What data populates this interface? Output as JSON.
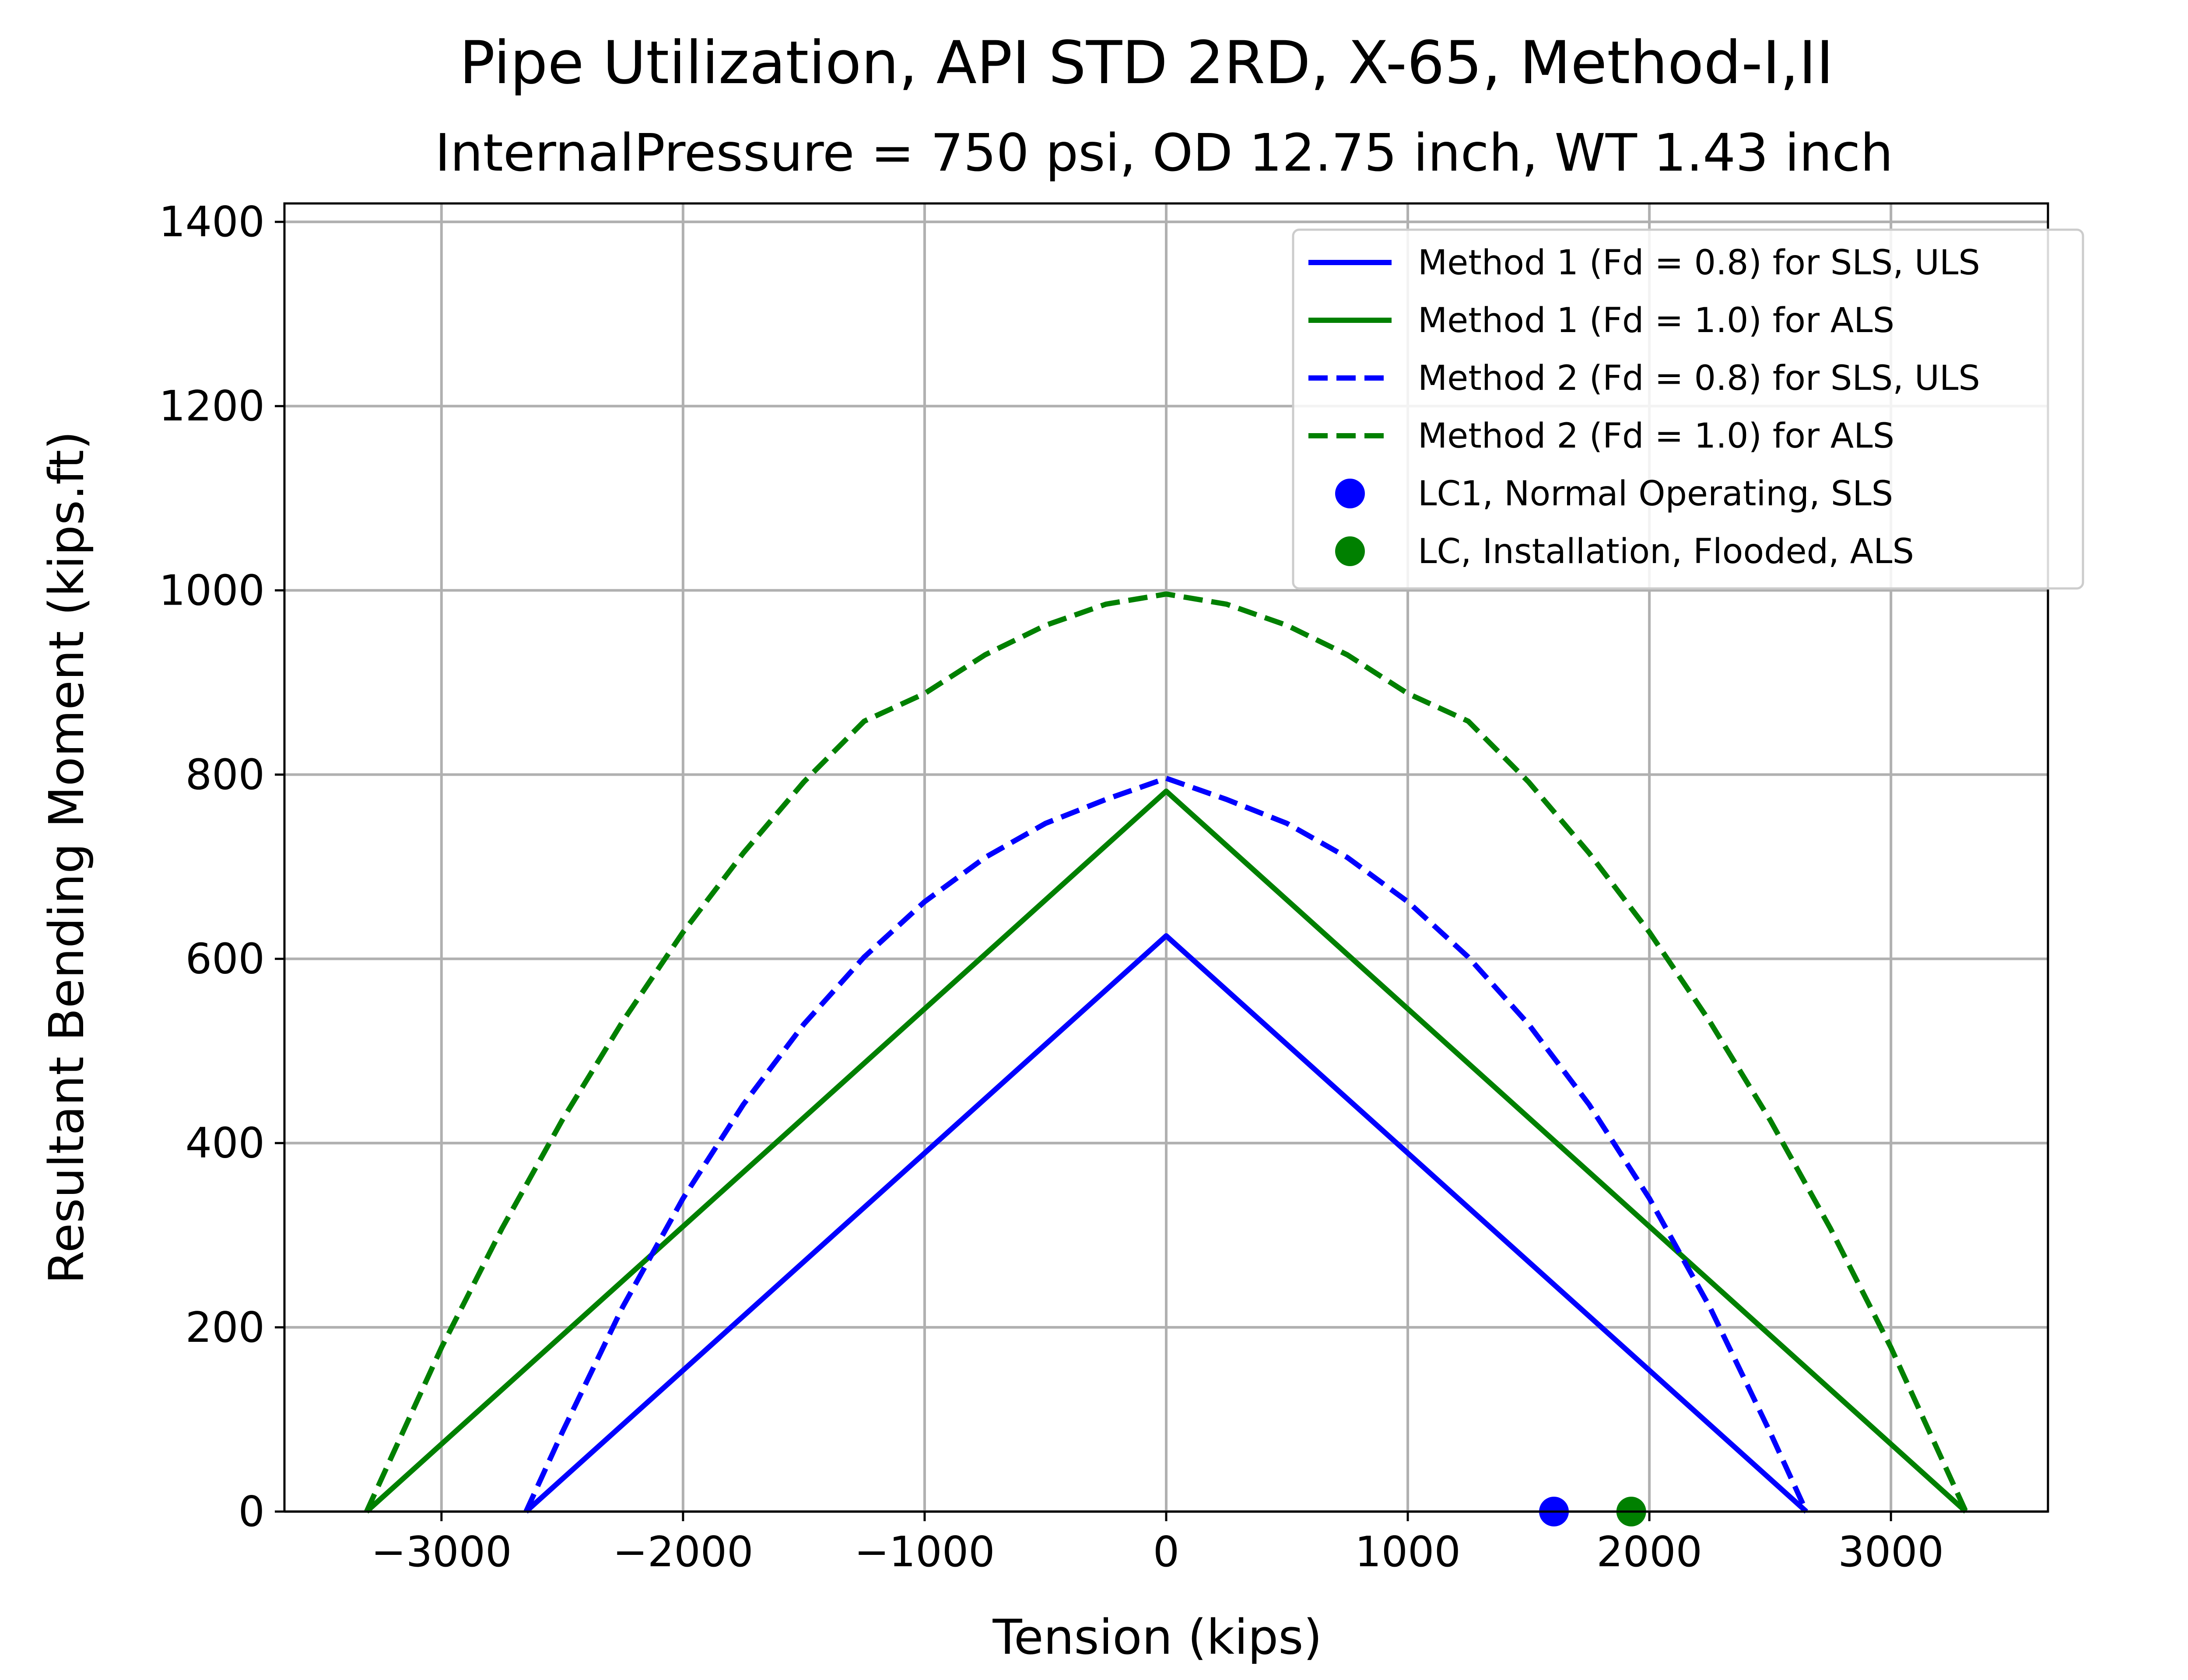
{
  "chart_data": {
    "type": "line",
    "title": "Pipe Utilization, API STD 2RD, X-65, Method-I,II",
    "subtitle": "InternalPressure = 750 psi, OD 12.75 inch, WT 1.43 inch",
    "xlabel": "Tension (kips)",
    "ylabel": "Resultant Bending Moment (kips.ft)",
    "xlim": [
      -3650,
      3650
    ],
    "ylim": [
      0,
      1420
    ],
    "xticks": [
      -3000,
      -2000,
      -1000,
      0,
      1000,
      2000,
      3000
    ],
    "xtick_labels": [
      "−3000",
      "−2000",
      "−1000",
      "0",
      "1000",
      "2000",
      "3000"
    ],
    "yticks": [
      0,
      200,
      400,
      600,
      800,
      1000,
      1200,
      1400
    ],
    "ytick_labels": [
      "0",
      "200",
      "400",
      "600",
      "800",
      "1000",
      "1200",
      "1400"
    ],
    "grid": true,
    "legend_position": "top-right",
    "series": [
      {
        "name": "Method 1 (Fd = 0.8) for SLS, ULS",
        "kind": "line",
        "style": "solid",
        "color": "#0000ff",
        "x": [
          -2650,
          0,
          2650
        ],
        "y": [
          0,
          625,
          0
        ]
      },
      {
        "name": "Method 1 (Fd = 1.0) for ALS",
        "kind": "line",
        "style": "solid",
        "color": "#008000",
        "x": [
          -3310,
          0,
          3310
        ],
        "y": [
          0,
          782,
          0
        ]
      },
      {
        "name": "Method 2 (Fd = 0.8) for SLS, ULS",
        "kind": "line",
        "style": "dashed",
        "color": "#0000ff",
        "x": [
          -2650,
          -2500,
          -2250,
          -2000,
          -1750,
          -1500,
          -1250,
          -1000,
          -750,
          -500,
          -250,
          0,
          250,
          500,
          750,
          1000,
          1250,
          1500,
          1750,
          2000,
          2250,
          2500,
          2650
        ],
        "y": [
          0,
          86,
          222,
          340,
          442,
          529,
          602,
          662,
          710,
          747,
          773,
          796,
          773,
          747,
          710,
          662,
          602,
          529,
          442,
          340,
          222,
          86,
          0
        ]
      },
      {
        "name": "Method 2 (Fd = 1.0) for ALS",
        "kind": "line",
        "style": "dashed",
        "color": "#008000",
        "x": [
          -3310,
          -3000,
          -2750,
          -2500,
          -2250,
          -2000,
          -1750,
          -1500,
          -1250,
          -1000,
          -750,
          -500,
          -250,
          0,
          250,
          500,
          750,
          1000,
          1250,
          1500,
          1750,
          2000,
          2250,
          2500,
          2750,
          3000,
          3310
        ],
        "y": [
          0,
          178,
          307,
          425,
          532,
          629,
          715,
          792,
          858,
          888,
          930,
          962,
          985,
          996,
          985,
          962,
          930,
          888,
          858,
          792,
          715,
          629,
          532,
          425,
          307,
          178,
          0
        ]
      },
      {
        "name": "LC1, Normal Operating, SLS",
        "kind": "scatter",
        "color": "#0000ff",
        "x": [
          1605
        ],
        "y": [
          0
        ]
      },
      {
        "name": "LC, Installation, Flooded, ALS",
        "kind": "scatter",
        "color": "#008000",
        "x": [
          1925
        ],
        "y": [
          0
        ]
      }
    ]
  }
}
